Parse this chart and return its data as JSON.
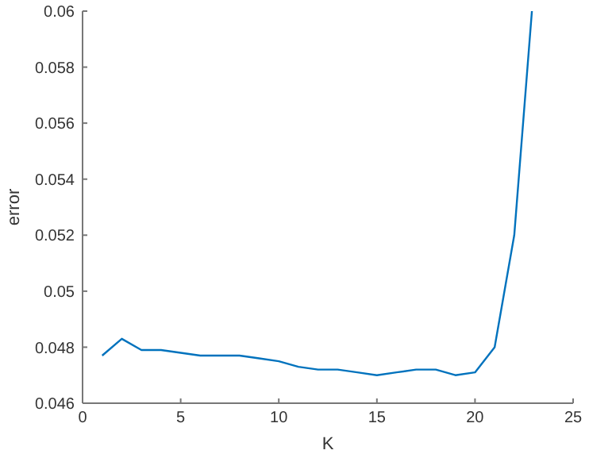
{
  "chart_data": {
    "type": "line",
    "xlabel": "K",
    "ylabel": "error",
    "x": [
      1,
      2,
      3,
      4,
      5,
      6,
      7,
      8,
      9,
      10,
      11,
      12,
      13,
      14,
      15,
      16,
      17,
      18,
      19,
      20,
      21,
      22,
      22.9
    ],
    "series": [
      {
        "color": "#0072bd",
        "values": [
          0.0477,
          0.0483,
          0.0479,
          0.0479,
          0.0478,
          0.0477,
          0.0477,
          0.0477,
          0.0476,
          0.0475,
          0.0473,
          0.0472,
          0.0472,
          0.0471,
          0.047,
          0.0471,
          0.0472,
          0.0472,
          0.047,
          0.0471,
          0.048,
          0.052,
          0.06
        ]
      }
    ],
    "xlim": [
      0,
      25
    ],
    "xticks": [
      0,
      5,
      10,
      15,
      20,
      25
    ],
    "ylim": [
      0.046,
      0.06
    ],
    "yticks": [
      0.046,
      0.048,
      0.05,
      0.052,
      0.054,
      0.056,
      0.058,
      0.06
    ],
    "grid": false,
    "legend": false,
    "marker": "none",
    "line_style": "solid"
  }
}
